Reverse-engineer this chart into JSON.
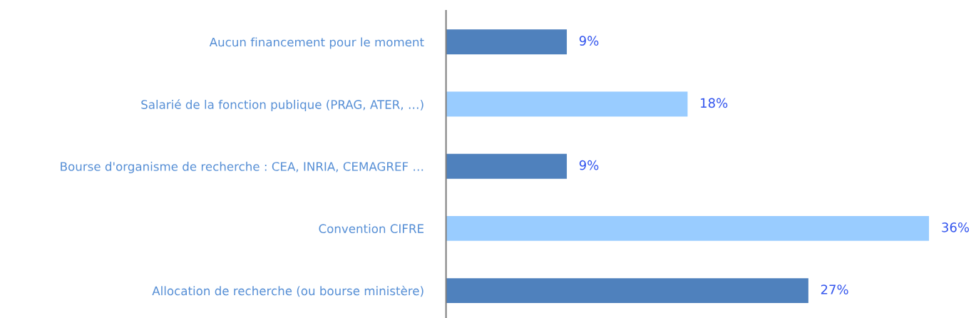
{
  "chart_data": {
    "type": "bar",
    "orientation": "horizontal",
    "categories": [
      "Aucun financement pour le moment",
      "Salarié de la fonction publique (PRAG, ATER, …)",
      "Bourse d'organisme de recherche : CEA, INRIA, CEMAGREF …",
      "Convention CIFRE",
      "Allocation de recherche (ou bourse ministère)"
    ],
    "values": [
      9,
      18,
      9,
      36,
      27
    ],
    "colors": [
      "#4f81bd",
      "#99ccff",
      "#4f81bd",
      "#99ccff",
      "#4f81bd"
    ],
    "value_labels": [
      "9%",
      "18%",
      "9%",
      "36%",
      "27%"
    ],
    "grid": false,
    "legend": false
  }
}
